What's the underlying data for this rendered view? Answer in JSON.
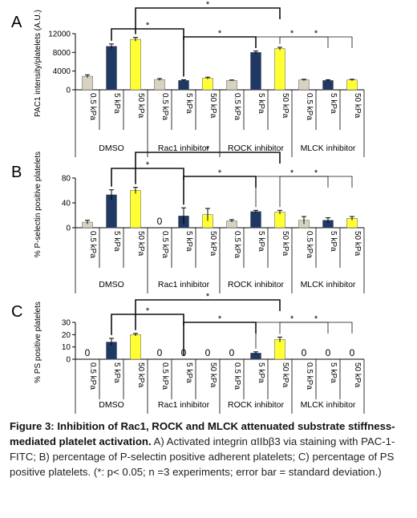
{
  "figure": {
    "caption_title": "Figure 3: Inhibition of Rac1, ROCK and MLCK attenuated substrate stiffness-mediated platelet activation.",
    "caption_body": " A) Activated integrin αIIbβ3 via staining with PAC-1-FITC; B) percentage of P-selectin positive adherent platelets; C) percentage of PS positive platelets. (*: p< 0.05; n =3 experiments; error bar = standard deviation.)"
  },
  "colors": {
    "k05": "#d8d3c0",
    "k5": "#1f3864",
    "k50": "#ffff33",
    "axis": "#000000"
  },
  "chart_data": [
    {
      "type": "bar",
      "panel_label": "A",
      "ylabel": "PAC1 intensity/platelets (A.U.)",
      "ylim": [
        0,
        12000
      ],
      "yticks": [
        0,
        4000,
        8000,
        12000
      ],
      "categories": [
        "0.5 kPa",
        "5 kPa",
        "50 kPa",
        "0.5 kPa",
        "5 kPa",
        "50 kPa",
        "0.5 kPa",
        "5 kPa",
        "50 kPa",
        "0.5 kPa",
        "5 kPa",
        "50 kPa"
      ],
      "groups": [
        "DMSO",
        "Rac1 inhibitor",
        "ROCK inhibitor",
        "MLCK inhibitor"
      ],
      "values": [
        2900,
        9300,
        10800,
        2200,
        2000,
        2500,
        2000,
        8000,
        8800,
        2100,
        2000,
        2100
      ],
      "errors": [
        300,
        500,
        400,
        200,
        150,
        200,
        100,
        300,
        300,
        150,
        150,
        150
      ],
      "zero_labels": [],
      "significance": [
        {
          "from": 2,
          "to": 8,
          "label": "*"
        },
        {
          "from": 8,
          "to": 11,
          "label": "*"
        },
        {
          "from": 1,
          "to": 4,
          "label": "*"
        },
        {
          "from": 4,
          "to": 7,
          "label": "*"
        },
        {
          "from": 7,
          "to": 10,
          "label": "*"
        }
      ]
    },
    {
      "type": "bar",
      "panel_label": "B",
      "ylabel": "% P-selectin positive platelets",
      "ylim": [
        0,
        80
      ],
      "yticks": [
        0,
        40,
        80
      ],
      "categories": [
        "0.5 kPa",
        "5 kPa",
        "50 kPa",
        "0.5 kPa",
        "5 kPa",
        "50 kPa",
        "0.5 kPa",
        "5 kPa",
        "50 kPa",
        "0.5 kPa",
        "5 kPa",
        "50 kPa"
      ],
      "groups": [
        "DMSO",
        "Rac1 inhibitor",
        "ROCK inhibitor",
        "MLCK inhibitor"
      ],
      "values": [
        9,
        53,
        60,
        0,
        19,
        21,
        11,
        26,
        25,
        12,
        12,
        15
      ],
      "errors": [
        3,
        8,
        5,
        0,
        13,
        10,
        2,
        2,
        3,
        6,
        4,
        3
      ],
      "zero_labels": [
        3
      ],
      "significance": [
        {
          "from": 2,
          "to": 8,
          "label": "*"
        },
        {
          "from": 8,
          "to": 11,
          "label": "*"
        },
        {
          "from": 1,
          "to": 4,
          "label": "*"
        },
        {
          "from": 4,
          "to": 7,
          "label": "*"
        },
        {
          "from": 7,
          "to": 10,
          "label": "*"
        }
      ]
    },
    {
      "type": "bar",
      "panel_label": "C",
      "ylabel": "% PS positive platelets",
      "ylim": [
        0,
        30
      ],
      "yticks": [
        0,
        10,
        20,
        30
      ],
      "categories": [
        "0.5 kPa",
        "5 kPa",
        "50 kPa",
        "0.5 kPa",
        "5 kPa",
        "50 kPa",
        "0.5 kPa",
        "5 kPa",
        "50 kPa",
        "0.5 kPa",
        "5 kPa",
        "50 kPa"
      ],
      "groups": [
        "DMSO",
        "Rac1 inhibitor",
        "ROCK inhibitor",
        "MLCK inhibitor"
      ],
      "values": [
        0,
        14,
        20,
        0,
        0,
        0,
        0,
        5,
        16,
        0,
        0,
        0
      ],
      "errors": [
        0,
        3,
        1,
        0,
        0,
        0,
        0,
        1,
        2,
        0,
        0,
        0
      ],
      "zero_labels": [
        0,
        3,
        4,
        5,
        6,
        9,
        10,
        11
      ],
      "significance": [
        {
          "from": 2,
          "to": 8,
          "label": "*"
        },
        {
          "from": 8,
          "to": 11,
          "label": "*"
        },
        {
          "from": 1,
          "to": 4,
          "label": "*"
        },
        {
          "from": 4,
          "to": 7,
          "label": "*"
        },
        {
          "from": 7,
          "to": 10,
          "label": "*"
        }
      ]
    }
  ]
}
